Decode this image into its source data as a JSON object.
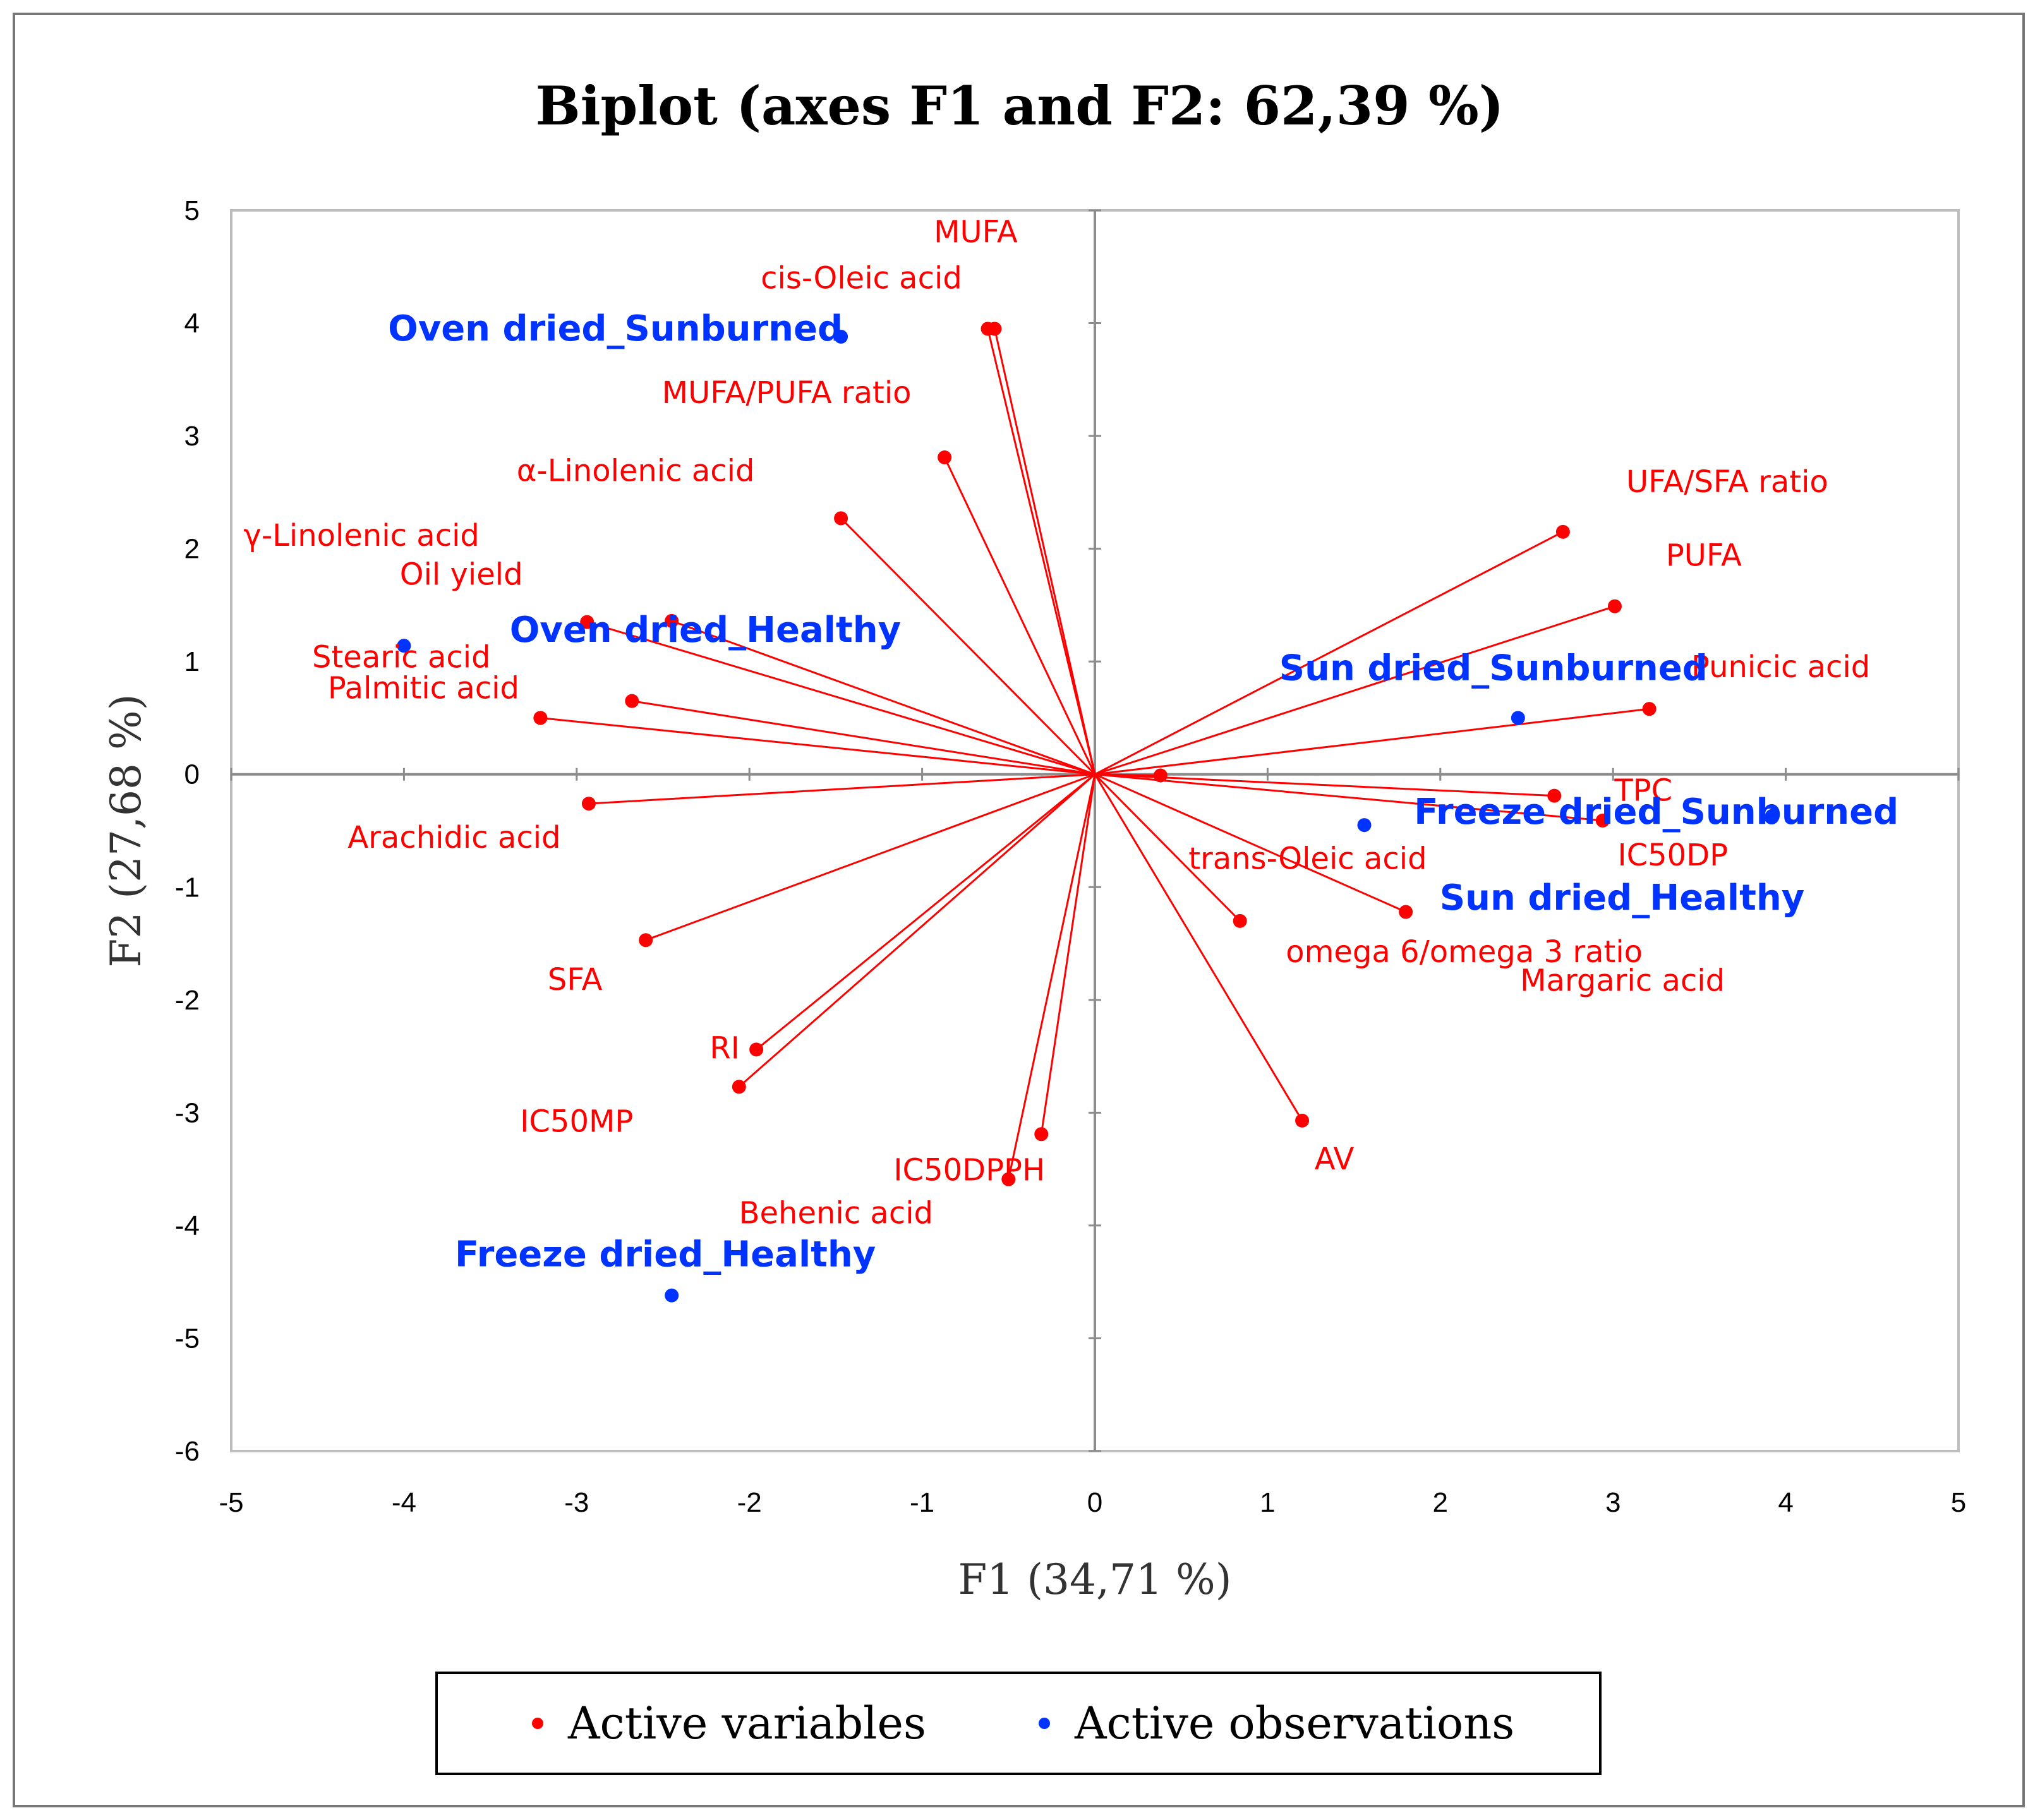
{
  "chart_data": {
    "type": "scatter",
    "subtype": "biplot",
    "title": "Biplot (axes F1 and F2: 62,39 %)",
    "xlabel": "F1 (34,71 %)",
    "ylabel": "F2 (27,68 %)",
    "xlim": [
      -5,
      5
    ],
    "ylim": [
      -6,
      5
    ],
    "xticks": [
      "-5",
      "-4",
      "-3",
      "-2",
      "-1",
      "0",
      "1",
      "2",
      "3",
      "4",
      "5"
    ],
    "yticks": [
      "5",
      "4",
      "3",
      "2",
      "1",
      "0",
      "-1",
      "-2",
      "-3",
      "-4",
      "-5",
      "-6"
    ],
    "grid": false,
    "colors": {
      "variables": "#ff0000",
      "observations": "#0033ff"
    },
    "variables": [
      {
        "name": "MUFA",
        "x": -0.58,
        "y": 3.95
      },
      {
        "name": "cis-Oleic acid",
        "x": -0.62,
        "y": 3.95
      },
      {
        "name": "MUFA/PUFA ratio",
        "x": -0.87,
        "y": 2.81
      },
      {
        "name": "α-Linolenic acid",
        "x": -1.47,
        "y": 2.27
      },
      {
        "name": "γ-Linolenic acid",
        "x": -2.45,
        "y": 1.36
      },
      {
        "name": "Oil yield",
        "x": -2.94,
        "y": 1.35
      },
      {
        "name": "Stearic acid",
        "x": -2.68,
        "y": 0.65
      },
      {
        "name": "Palmitic acid",
        "x": -3.21,
        "y": 0.5
      },
      {
        "name": "Arachidic acid",
        "x": -2.93,
        "y": -0.26
      },
      {
        "name": "SFA",
        "x": -2.6,
        "y": -1.47
      },
      {
        "name": "RI",
        "x": -1.96,
        "y": -2.44
      },
      {
        "name": "IC50MP",
        "x": -2.06,
        "y": -2.77
      },
      {
        "name": "IC50DPPH",
        "x": -0.31,
        "y": -3.19
      },
      {
        "name": "Behenic acid",
        "x": -0.5,
        "y": -3.59
      },
      {
        "name": "AV",
        "x": 1.2,
        "y": -3.07
      },
      {
        "name": "trans-Oleic acid",
        "x": 0.38,
        "y": -0.01
      },
      {
        "name": "omega 6/omega 3 ratio",
        "x": 0.84,
        "y": -1.3
      },
      {
        "name": "Margaric acid",
        "x": 1.8,
        "y": -1.22
      },
      {
        "name": "TPC",
        "x": 2.66,
        "y": -0.19
      },
      {
        "name": "IC50DP",
        "x": 2.94,
        "y": -0.41
      },
      {
        "name": "Punicic acid",
        "x": 3.21,
        "y": 0.58
      },
      {
        "name": "PUFA",
        "x": 3.01,
        "y": 1.49
      },
      {
        "name": "UFA/SFA ratio",
        "x": 2.71,
        "y": 2.15
      }
    ],
    "observations": [
      {
        "name": "Oven dried_Sunburned",
        "x": -1.47,
        "y": 3.88
      },
      {
        "name": "Oven dried_Healthy",
        "x": -4.0,
        "y": 1.14
      },
      {
        "name": "Sun dried_Sunburned",
        "x": 2.45,
        "y": 0.5
      },
      {
        "name": "Freeze dried_Sunburned",
        "x": 3.92,
        "y": -0.37
      },
      {
        "name": "Sun dried_Healthy",
        "x": 1.56,
        "y": -0.45
      },
      {
        "name": "Freeze dried_Healthy",
        "x": -2.45,
        "y": -4.62
      }
    ],
    "legend": {
      "position": "bottom",
      "entries": [
        "Active variables",
        "Active observations"
      ]
    }
  }
}
